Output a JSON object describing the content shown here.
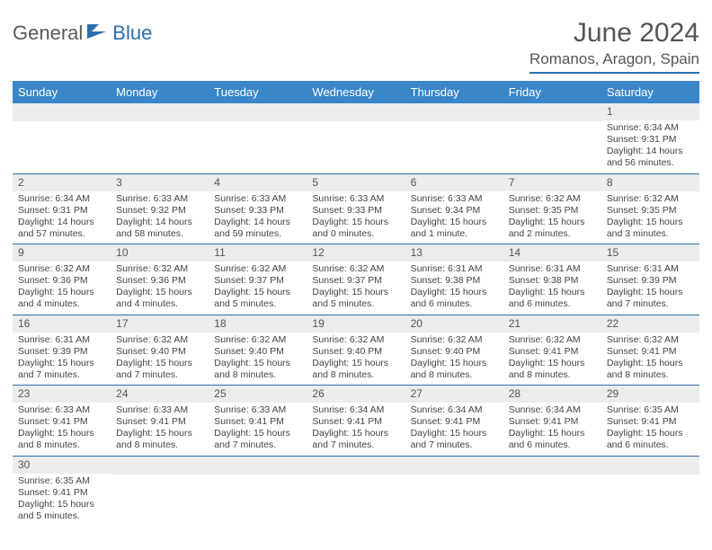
{
  "brand": {
    "part1": "General",
    "part2": "Blue"
  },
  "title": "June 2024",
  "location": "Romanos, Aragon, Spain",
  "colors": {
    "header_bg": "#3a86c8",
    "rule": "#2b6fab",
    "daynum_bg": "#ececec",
    "text": "#444444"
  },
  "weekdays": [
    "Sunday",
    "Monday",
    "Tuesday",
    "Wednesday",
    "Thursday",
    "Friday",
    "Saturday"
  ],
  "weeks": [
    [
      null,
      null,
      null,
      null,
      null,
      null,
      {
        "n": "1",
        "sr": "Sunrise: 6:34 AM",
        "ss": "Sunset: 9:31 PM",
        "dl": "Daylight: 14 hours and 56 minutes."
      }
    ],
    [
      {
        "n": "2",
        "sr": "Sunrise: 6:34 AM",
        "ss": "Sunset: 9:31 PM",
        "dl": "Daylight: 14 hours and 57 minutes."
      },
      {
        "n": "3",
        "sr": "Sunrise: 6:33 AM",
        "ss": "Sunset: 9:32 PM",
        "dl": "Daylight: 14 hours and 58 minutes."
      },
      {
        "n": "4",
        "sr": "Sunrise: 6:33 AM",
        "ss": "Sunset: 9:33 PM",
        "dl": "Daylight: 14 hours and 59 minutes."
      },
      {
        "n": "5",
        "sr": "Sunrise: 6:33 AM",
        "ss": "Sunset: 9:33 PM",
        "dl": "Daylight: 15 hours and 0 minutes."
      },
      {
        "n": "6",
        "sr": "Sunrise: 6:33 AM",
        "ss": "Sunset: 9:34 PM",
        "dl": "Daylight: 15 hours and 1 minute."
      },
      {
        "n": "7",
        "sr": "Sunrise: 6:32 AM",
        "ss": "Sunset: 9:35 PM",
        "dl": "Daylight: 15 hours and 2 minutes."
      },
      {
        "n": "8",
        "sr": "Sunrise: 6:32 AM",
        "ss": "Sunset: 9:35 PM",
        "dl": "Daylight: 15 hours and 3 minutes."
      }
    ],
    [
      {
        "n": "9",
        "sr": "Sunrise: 6:32 AM",
        "ss": "Sunset: 9:36 PM",
        "dl": "Daylight: 15 hours and 4 minutes."
      },
      {
        "n": "10",
        "sr": "Sunrise: 6:32 AM",
        "ss": "Sunset: 9:36 PM",
        "dl": "Daylight: 15 hours and 4 minutes."
      },
      {
        "n": "11",
        "sr": "Sunrise: 6:32 AM",
        "ss": "Sunset: 9:37 PM",
        "dl": "Daylight: 15 hours and 5 minutes."
      },
      {
        "n": "12",
        "sr": "Sunrise: 6:32 AM",
        "ss": "Sunset: 9:37 PM",
        "dl": "Daylight: 15 hours and 5 minutes."
      },
      {
        "n": "13",
        "sr": "Sunrise: 6:31 AM",
        "ss": "Sunset: 9:38 PM",
        "dl": "Daylight: 15 hours and 6 minutes."
      },
      {
        "n": "14",
        "sr": "Sunrise: 6:31 AM",
        "ss": "Sunset: 9:38 PM",
        "dl": "Daylight: 15 hours and 6 minutes."
      },
      {
        "n": "15",
        "sr": "Sunrise: 6:31 AM",
        "ss": "Sunset: 9:39 PM",
        "dl": "Daylight: 15 hours and 7 minutes."
      }
    ],
    [
      {
        "n": "16",
        "sr": "Sunrise: 6:31 AM",
        "ss": "Sunset: 9:39 PM",
        "dl": "Daylight: 15 hours and 7 minutes."
      },
      {
        "n": "17",
        "sr": "Sunrise: 6:32 AM",
        "ss": "Sunset: 9:40 PM",
        "dl": "Daylight: 15 hours and 7 minutes."
      },
      {
        "n": "18",
        "sr": "Sunrise: 6:32 AM",
        "ss": "Sunset: 9:40 PM",
        "dl": "Daylight: 15 hours and 8 minutes."
      },
      {
        "n": "19",
        "sr": "Sunrise: 6:32 AM",
        "ss": "Sunset: 9:40 PM",
        "dl": "Daylight: 15 hours and 8 minutes."
      },
      {
        "n": "20",
        "sr": "Sunrise: 6:32 AM",
        "ss": "Sunset: 9:40 PM",
        "dl": "Daylight: 15 hours and 8 minutes."
      },
      {
        "n": "21",
        "sr": "Sunrise: 6:32 AM",
        "ss": "Sunset: 9:41 PM",
        "dl": "Daylight: 15 hours and 8 minutes."
      },
      {
        "n": "22",
        "sr": "Sunrise: 6:32 AM",
        "ss": "Sunset: 9:41 PM",
        "dl": "Daylight: 15 hours and 8 minutes."
      }
    ],
    [
      {
        "n": "23",
        "sr": "Sunrise: 6:33 AM",
        "ss": "Sunset: 9:41 PM",
        "dl": "Daylight: 15 hours and 8 minutes."
      },
      {
        "n": "24",
        "sr": "Sunrise: 6:33 AM",
        "ss": "Sunset: 9:41 PM",
        "dl": "Daylight: 15 hours and 8 minutes."
      },
      {
        "n": "25",
        "sr": "Sunrise: 6:33 AM",
        "ss": "Sunset: 9:41 PM",
        "dl": "Daylight: 15 hours and 7 minutes."
      },
      {
        "n": "26",
        "sr": "Sunrise: 6:34 AM",
        "ss": "Sunset: 9:41 PM",
        "dl": "Daylight: 15 hours and 7 minutes."
      },
      {
        "n": "27",
        "sr": "Sunrise: 6:34 AM",
        "ss": "Sunset: 9:41 PM",
        "dl": "Daylight: 15 hours and 7 minutes."
      },
      {
        "n": "28",
        "sr": "Sunrise: 6:34 AM",
        "ss": "Sunset: 9:41 PM",
        "dl": "Daylight: 15 hours and 6 minutes."
      },
      {
        "n": "29",
        "sr": "Sunrise: 6:35 AM",
        "ss": "Sunset: 9:41 PM",
        "dl": "Daylight: 15 hours and 6 minutes."
      }
    ],
    [
      {
        "n": "30",
        "sr": "Sunrise: 6:35 AM",
        "ss": "Sunset: 9:41 PM",
        "dl": "Daylight: 15 hours and 5 minutes."
      },
      null,
      null,
      null,
      null,
      null,
      null
    ]
  ]
}
